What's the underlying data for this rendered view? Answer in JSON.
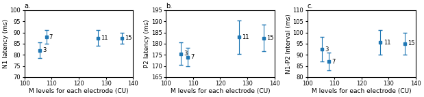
{
  "chart_data": [
    {
      "type": "scatter",
      "title": "a.",
      "x_label": "M levels for each electrode (CU)",
      "y_label": "N1 latency (ms)",
      "x": [
        105.5,
        108.0,
        127.0,
        136.0
      ],
      "values": [
        82.0,
        88.0,
        87.5,
        87.5
      ],
      "errors": [
        3.5,
        3.0,
        3.5,
        2.5
      ],
      "point_labels": [
        "3",
        "7",
        "11",
        "15"
      ],
      "marker": "square",
      "xlim": [
        100,
        140
      ],
      "xticks": [
        100,
        110,
        120,
        130,
        140
      ],
      "ylim": [
        70,
        100
      ],
      "yticks": [
        70,
        75,
        80,
        85,
        90,
        95,
        100
      ],
      "grid": false
    },
    {
      "type": "scatter",
      "title": "b.",
      "x_label": "M levels for each electrode (CU)",
      "y_label": "P2 latency (ms)",
      "x": [
        105.5,
        108.0,
        127.0,
        136.0
      ],
      "values": [
        175.5,
        174.0,
        183.0,
        182.5
      ],
      "errors": [
        5.0,
        4.0,
        7.5,
        6.0
      ],
      "point_labels": [
        "3",
        "7",
        "11",
        "15"
      ],
      "marker": "square",
      "xlim": [
        100,
        140
      ],
      "xticks": [
        100,
        110,
        120,
        130,
        140
      ],
      "ylim": [
        165,
        195
      ],
      "yticks": [
        165,
        170,
        175,
        180,
        185,
        190,
        195
      ],
      "grid": false
    },
    {
      "type": "scatter",
      "title": "c.",
      "x_label": "M levels for each electrode (CU)",
      "y_label": "N1-P2 Interval (ms)",
      "x": [
        105.5,
        108.0,
        127.0,
        136.0
      ],
      "values": [
        92.5,
        87.0,
        95.5,
        95.0
      ],
      "errors": [
        5.5,
        4.0,
        5.5,
        5.0
      ],
      "point_labels": [
        "3",
        "7",
        "11",
        "15"
      ],
      "marker": "square",
      "xlim": [
        100,
        140
      ],
      "xticks": [
        100,
        110,
        120,
        130,
        140
      ],
      "ylim": [
        80,
        110
      ],
      "yticks": [
        80,
        85,
        90,
        95,
        100,
        105,
        110
      ],
      "grid": false
    }
  ]
}
